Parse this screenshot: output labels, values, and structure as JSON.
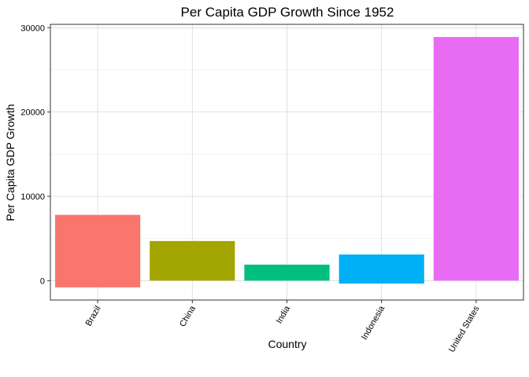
{
  "chart_data": {
    "type": "bar",
    "title": "Per Capita GDP Growth Since 1952",
    "xlabel": "Country",
    "ylabel": "Per Capita GDP Growth",
    "categories": [
      "Brazil",
      "China",
      "India",
      "Indonesia",
      "United States"
    ],
    "series": [
      {
        "bars": [
          {
            "category": "Brazil",
            "ymin": -800,
            "ymax": 7800,
            "color": "#F8766D"
          },
          {
            "category": "China",
            "ymin": 0,
            "ymax": 4700,
            "color": "#A3A500"
          },
          {
            "category": "India",
            "ymin": 0,
            "ymax": 1900,
            "color": "#00BF7D"
          },
          {
            "category": "Indonesia",
            "ymin": -350,
            "ymax": 3100,
            "color": "#00B0F6"
          },
          {
            "category": "United States",
            "ymin": 0,
            "ymax": 28900,
            "color": "#E76BF3"
          }
        ]
      }
    ],
    "yticks": [
      0,
      10000,
      20000,
      30000
    ],
    "ytick_labels": [
      "0",
      "10000",
      "20000",
      "30000"
    ],
    "ylim": [
      -2300,
      30400
    ],
    "grid": true,
    "legend": "none"
  }
}
